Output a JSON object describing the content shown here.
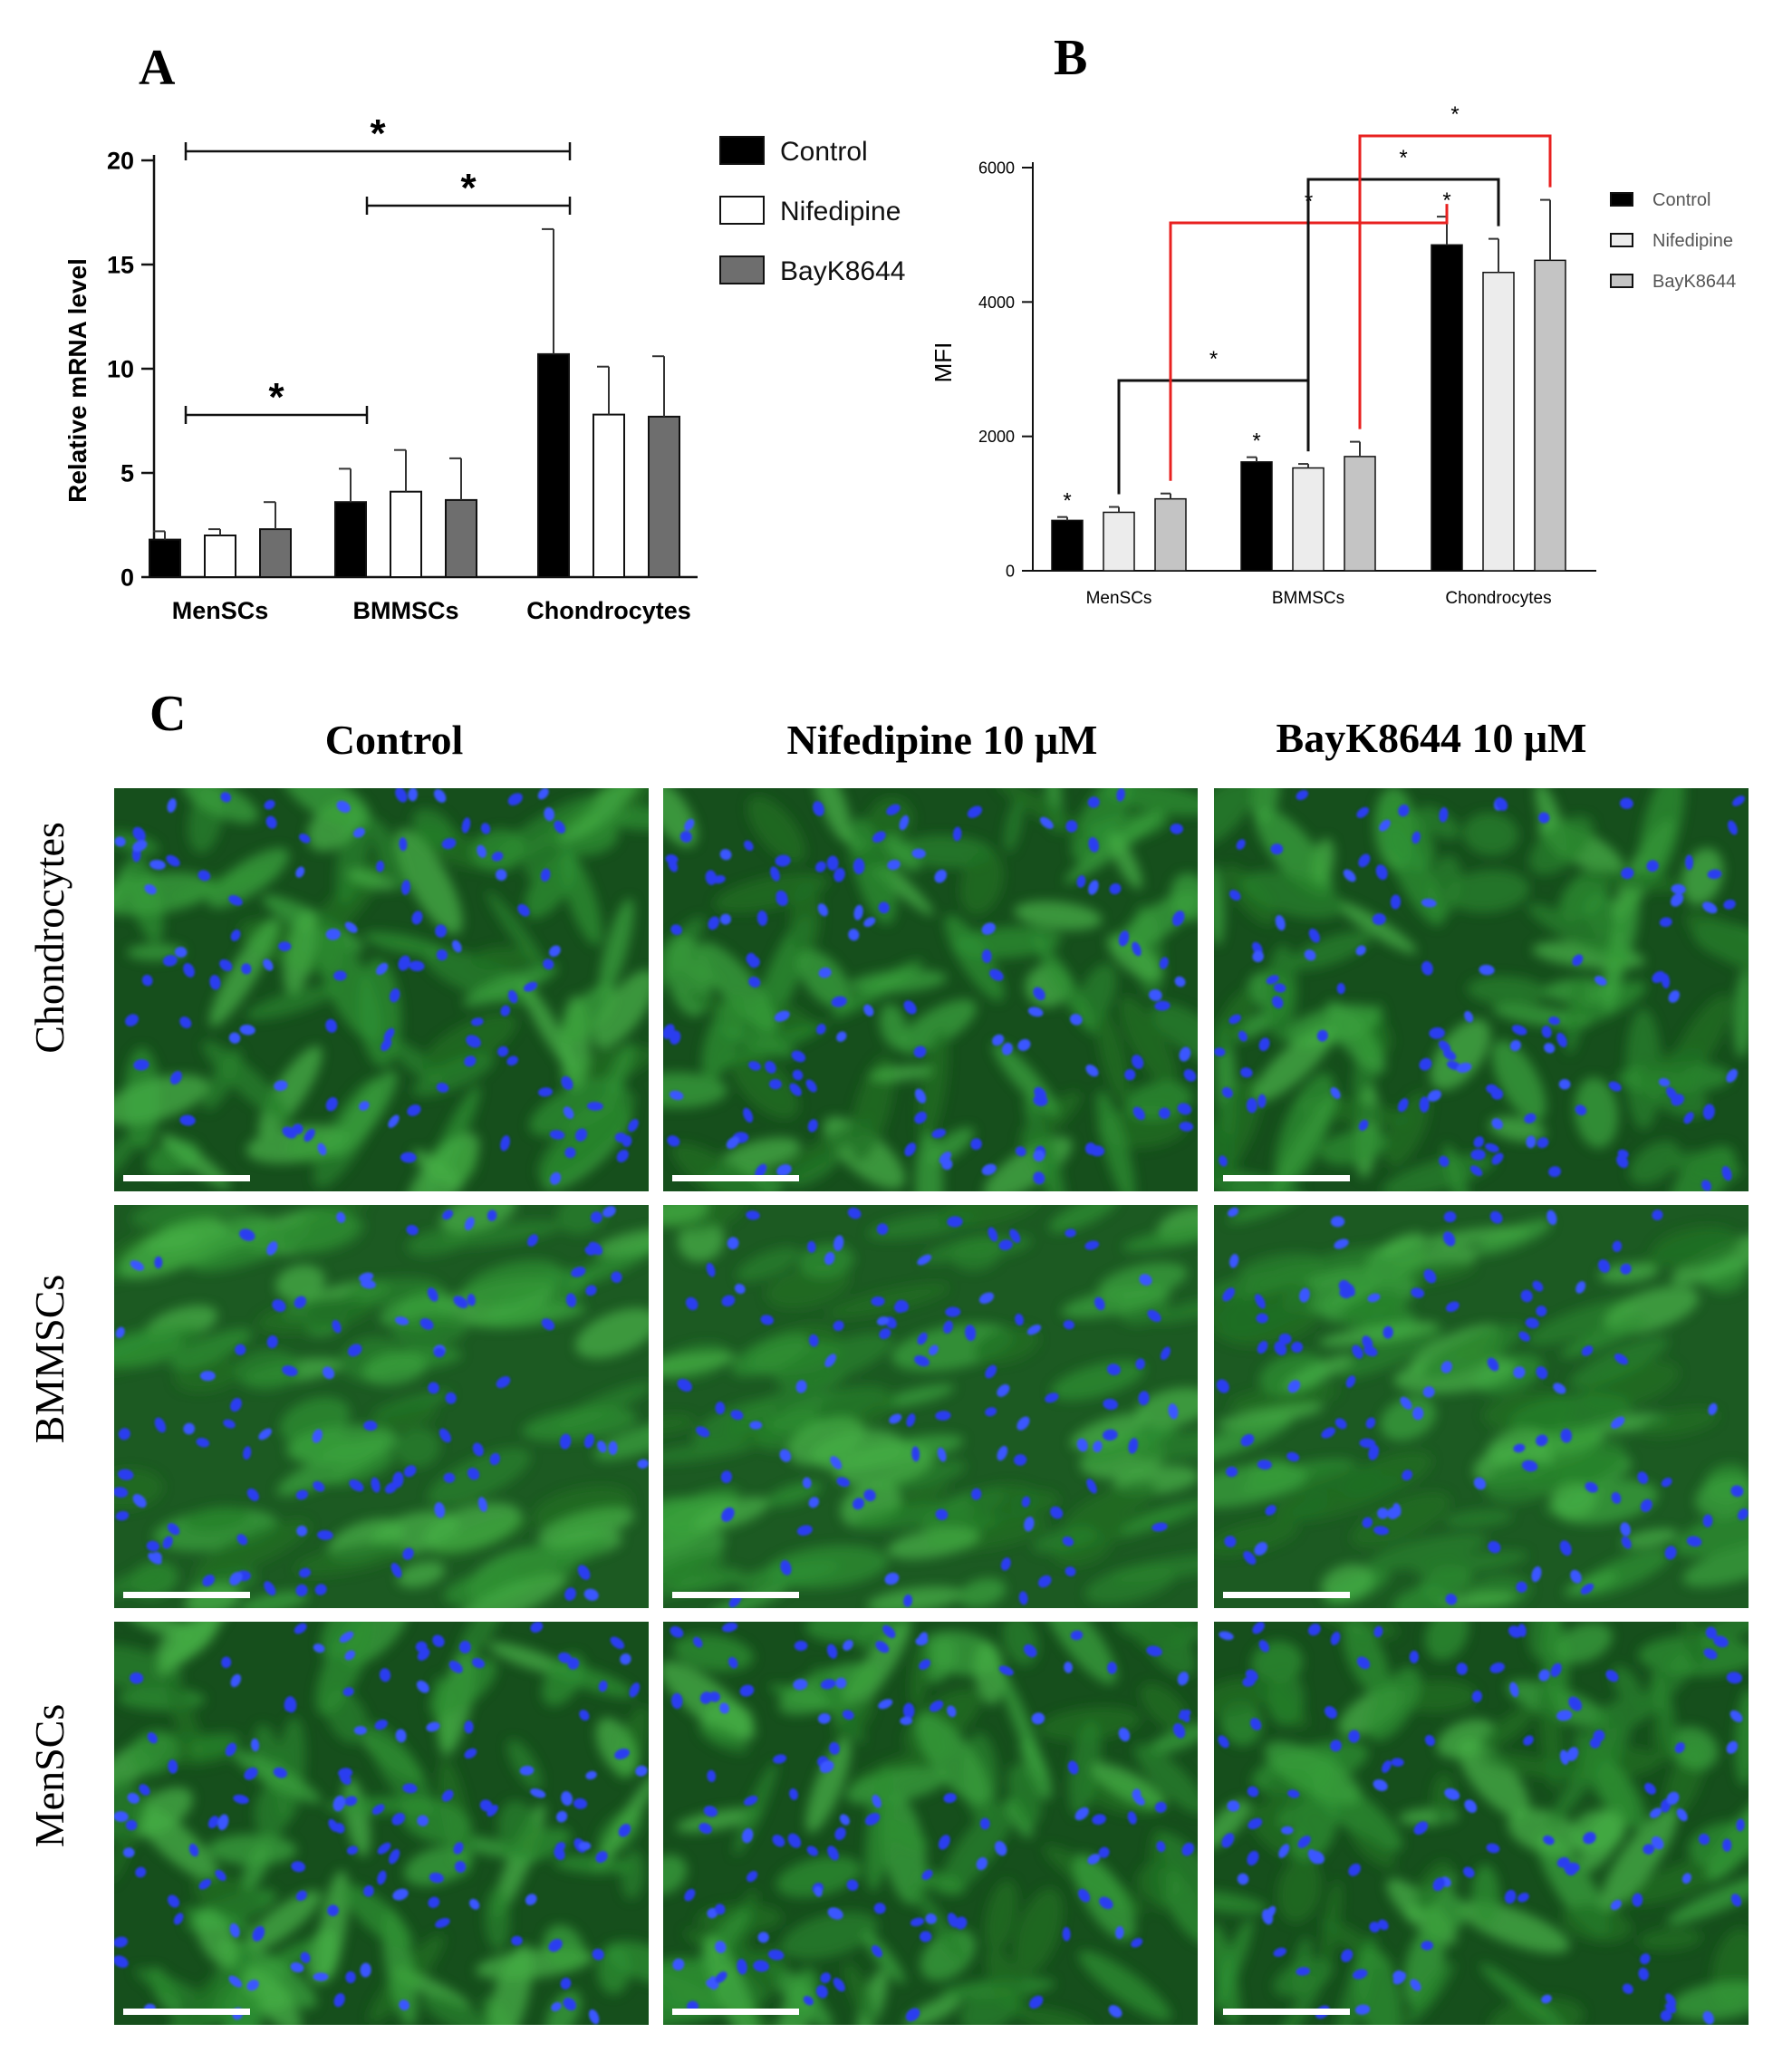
{
  "colors": {
    "control": "#000000",
    "nifedipine": "#ffffff",
    "bayk_a": "#6e6e6e",
    "nifedipine_b": "#ececec",
    "bayk_b": "#c4c4c4",
    "red_bracket": "#e8201f",
    "micrograph_green": "#1f6b22",
    "nucleus_blue": "#2a3cf0"
  },
  "chart_data": [
    {
      "panel": "A",
      "type": "bar",
      "ylabel": "Relative mRNA level",
      "ylim": [
        0,
        20
      ],
      "yticks": [
        "0",
        "5",
        "10",
        "15",
        "20"
      ],
      "categories": [
        "MenSCs",
        "BMMSCs",
        "Chondrocytes"
      ],
      "series": [
        {
          "name": "Control",
          "values": [
            1.8,
            3.6,
            10.7
          ],
          "errors": [
            0.4,
            1.6,
            6.0
          ]
        },
        {
          "name": "Nifedipine",
          "values": [
            2.0,
            4.1,
            7.8
          ],
          "errors": [
            0.3,
            2.0,
            2.3
          ]
        },
        {
          "name": "BayK8644",
          "values": [
            2.3,
            3.7,
            7.7
          ],
          "errors": [
            1.3,
            2.0,
            2.9
          ]
        }
      ],
      "legend": "right",
      "significance": [
        {
          "from": "MenSCs",
          "to": "Chondrocytes",
          "label": "*"
        },
        {
          "from": "BMMSCs",
          "to": "Chondrocytes",
          "label": "*"
        },
        {
          "from": "MenSCs",
          "to": "BMMSCs",
          "label": "*"
        }
      ]
    },
    {
      "panel": "B",
      "type": "bar",
      "ylabel": "MFI",
      "ylim": [
        0,
        6000
      ],
      "yticks": [
        "0",
        "2000",
        "4000",
        "6000"
      ],
      "categories": [
        "MenSCs",
        "BMMSCs",
        "Chondrocytes"
      ],
      "series": [
        {
          "name": "Control",
          "values": [
            750,
            1620,
            4850
          ],
          "errors": [
            50,
            70,
            420
          ]
        },
        {
          "name": "Nifedipine",
          "values": [
            870,
            1530,
            4440
          ],
          "errors": [
            80,
            60,
            500
          ]
        },
        {
          "name": "BayK8644",
          "values": [
            1070,
            1700,
            4620
          ],
          "errors": [
            80,
            220,
            900
          ]
        }
      ],
      "legend": "right",
      "bar_stars": [
        {
          "category": "MenSCs",
          "series": "Control",
          "label": "*"
        },
        {
          "category": "BMMSCs",
          "series": "Control",
          "label": "*"
        },
        {
          "category": "Chondrocytes",
          "series": "Control",
          "label": "*"
        }
      ],
      "significance": [
        {
          "from": "MenSCs Nifedipine",
          "to": "BMMSCs Nifedipine",
          "label": "*",
          "color": "black"
        },
        {
          "from": "MenSCs BayK8644",
          "to": "Chondrocytes Control",
          "label": "*",
          "color": "red"
        },
        {
          "from": "BMMSCs Nifedipine",
          "to": "Chondrocytes Nifedipine",
          "label": "*",
          "color": "black"
        },
        {
          "from": "BMMSCs BayK8644",
          "to": "Chondrocytes BayK8644",
          "label": "*",
          "color": "red"
        }
      ]
    }
  ],
  "panel_c": {
    "letter": "C",
    "columns": [
      "Control",
      "Nifedipine 10 μM",
      "BayK8644 10 μM"
    ],
    "rows": [
      "Chondrocytes",
      "BMMSCs",
      "MenSCs"
    ]
  },
  "panel_labels": {
    "a": "A",
    "b": "B"
  }
}
